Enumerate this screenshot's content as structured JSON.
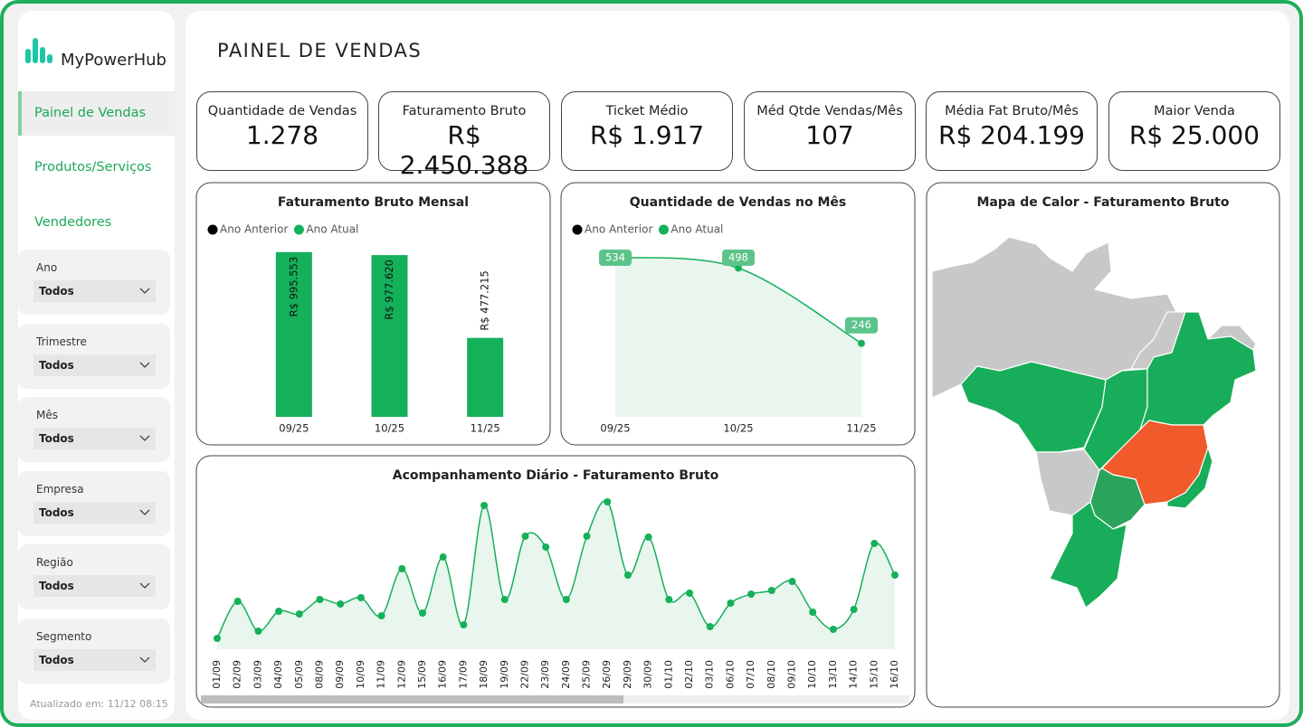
{
  "brand": "MyPowerHub",
  "nav": [
    "Painel de Vendas",
    "Produtos/Serviços",
    "Vendedores"
  ],
  "filters": [
    {
      "label": "Ano",
      "value": "Todos"
    },
    {
      "label": "Trimestre",
      "value": "Todos"
    },
    {
      "label": "Mês",
      "value": "Todos"
    },
    {
      "label": "Empresa",
      "value": "Todos"
    },
    {
      "label": "Região",
      "value": "Todos"
    },
    {
      "label": "Segmento",
      "value": "Todos"
    }
  ],
  "updated": "Atualizado em: 11/12 08:15",
  "header": {
    "title": "PAINEL DE VENDAS"
  },
  "kpis": [
    {
      "label": "Quantidade de Vendas",
      "value": "1.278"
    },
    {
      "label": "Faturamento Bruto",
      "value": "R$ 2.450.388"
    },
    {
      "label": "Ticket Médio",
      "value": "R$ 1.917"
    },
    {
      "label": "Méd Qtde Vendas/Mês",
      "value": "107"
    },
    {
      "label": "Média Fat Bruto/Mês",
      "value": "R$ 204.199"
    },
    {
      "label": "Maior Venda",
      "value": "R$ 25.000"
    }
  ],
  "chart_data": [
    {
      "type": "bar",
      "title": "Faturamento Bruto Mensal",
      "categories": [
        "09/25",
        "10/25",
        "11/25"
      ],
      "series": [
        {
          "name": "Ano Anterior",
          "color": "#000000",
          "values": [
            null,
            null,
            null
          ]
        },
        {
          "name": "Ano Atual",
          "color": "#15b05a",
          "values": [
            995553,
            977620,
            477215
          ],
          "value_labels": [
            "R$ 995.553",
            "R$ 977.620",
            "R$ 477.215"
          ]
        }
      ],
      "ylim": [
        0,
        1000000
      ]
    },
    {
      "type": "line",
      "title": "Quantidade de Vendas no Mês",
      "categories": [
        "09/25",
        "10/25",
        "11/25"
      ],
      "series": [
        {
          "name": "Ano Anterior",
          "color": "#000000",
          "values": [
            null,
            null,
            null
          ]
        },
        {
          "name": "Ano Atual",
          "color": "#15b05a",
          "values": [
            534,
            498,
            246
          ]
        }
      ],
      "ylim": [
        0,
        560
      ]
    },
    {
      "type": "line",
      "title": "Acompanhamento Diário - Faturamento Bruto",
      "categories": [
        "01/09",
        "02/09",
        "03/09",
        "04/09",
        "05/09",
        "08/09",
        "09/09",
        "10/09",
        "11/09",
        "12/09",
        "15/09",
        "16/09",
        "17/09",
        "18/09",
        "19/09",
        "22/09",
        "23/09",
        "24/09",
        "25/09",
        "26/09",
        "29/09",
        "30/09",
        "01/10",
        "02/10",
        "03/10",
        "06/10",
        "07/10",
        "08/10",
        "09/10",
        "10/10",
        "13/10",
        "14/10",
        "15/10",
        "16/10"
      ],
      "values": [
        12000,
        53000,
        20000,
        42000,
        39000,
        55000,
        50000,
        57000,
        37000,
        89000,
        40000,
        102000,
        27000,
        159000,
        55000,
        125000,
        113000,
        55000,
        125000,
        163000,
        82000,
        124000,
        55000,
        62000,
        25000,
        51000,
        61000,
        65000,
        75000,
        41000,
        22000,
        44000,
        117000,
        82000
      ],
      "color": "#15b05a",
      "ylim": [
        0,
        170000
      ]
    }
  ],
  "map": {
    "title": "Mapa de Calor - Faturamento Bruto"
  }
}
